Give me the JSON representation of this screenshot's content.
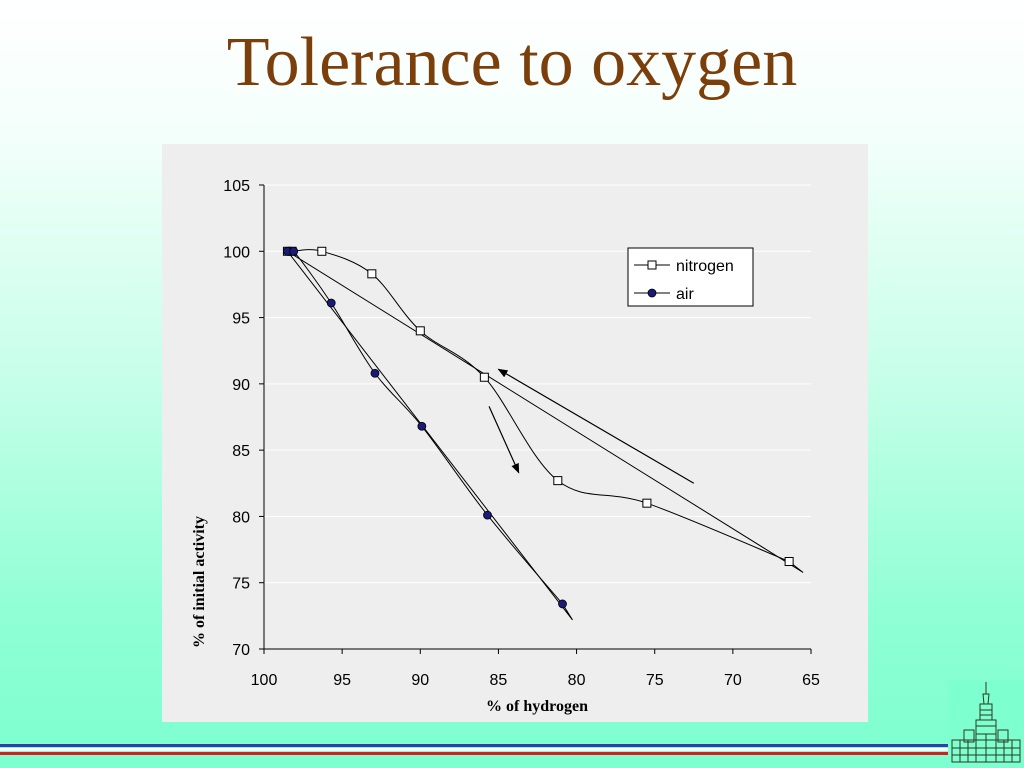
{
  "slide": {
    "title": "Tolerance to oxygen"
  },
  "colors": {
    "title": "#7b3f0c",
    "plot_background": "#eeeeee",
    "air_marker": "#1a1a7a",
    "stripe_blue": "#3a3ab0",
    "stripe_red": "#d02020"
  },
  "chart_data": {
    "type": "scatter",
    "xlabel": "% of hydrogen",
    "ylabel": "% of initial activity",
    "xlim": [
      100,
      65
    ],
    "ylim": [
      70,
      105
    ],
    "x_reversed": true,
    "xticks": [
      100,
      95,
      90,
      85,
      80,
      75,
      70,
      65
    ],
    "yticks": [
      105,
      100,
      95,
      90,
      85,
      80,
      75,
      70
    ],
    "grid": "horizontal",
    "legend_position": "top-right",
    "series": [
      {
        "name": "nitrogen",
        "marker": "open-square",
        "x": [
          98.5,
          98.2,
          96.3,
          93.1,
          90.0,
          85.9,
          81.2,
          75.5,
          66.4
        ],
        "y": [
          100.0,
          100.0,
          100.0,
          98.3,
          94.0,
          90.5,
          82.7,
          81.0,
          76.6
        ]
      },
      {
        "name": "air",
        "marker": "filled-circle",
        "x": [
          98.5,
          98.1,
          95.7,
          92.9,
          89.9,
          85.7,
          80.9
        ],
        "y": [
          100.0,
          100.0,
          96.1,
          90.8,
          86.8,
          80.1,
          73.4
        ]
      }
    ],
    "annotations": [
      {
        "type": "arrow",
        "from": [
          72.5,
          82.5
        ],
        "to": [
          85.0,
          91.1
        ]
      },
      {
        "type": "arrow",
        "from": [
          85.6,
          88.3
        ],
        "to": [
          83.7,
          83.3
        ]
      }
    ]
  }
}
